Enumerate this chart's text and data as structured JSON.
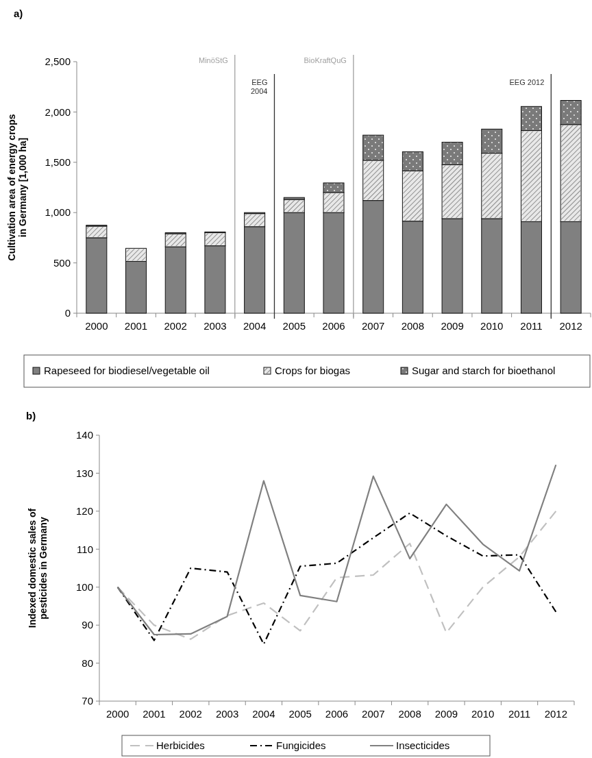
{
  "chart_data": [
    {
      "type": "bar",
      "title": "a)",
      "ylabel": "Cultivation area of energy crops\nin Germany [1,000 ha]",
      "stacked": true,
      "categories": [
        "2000",
        "2001",
        "2002",
        "2003",
        "2004",
        "2005",
        "2006",
        "2007",
        "2008",
        "2009",
        "2010",
        "2011",
        "2012"
      ],
      "series": [
        {
          "name": "Rapeseed for biodiesel/vegetable oil",
          "color": "#808080",
          "values": [
            750,
            515,
            660,
            670,
            860,
            1000,
            1000,
            1120,
            915,
            940,
            940,
            910,
            910
          ]
        },
        {
          "name": "Crops for biogas",
          "color": "#e8e8e8",
          "values": [
            115,
            130,
            130,
            130,
            130,
            130,
            200,
            400,
            500,
            535,
            650,
            905,
            965
          ]
        },
        {
          "name": "Sugar and starch for bioethanol",
          "color": "#7a7a7a",
          "values": [
            10,
            0,
            10,
            8,
            10,
            20,
            95,
            250,
            190,
            225,
            240,
            240,
            240
          ]
        }
      ],
      "ylim": [
        0,
        2500
      ],
      "yticks": [
        {
          "value": 0,
          "label": "0"
        },
        {
          "value": 500,
          "label": "500"
        },
        {
          "value": 1000,
          "label": "1,000"
        },
        {
          "value": 1500,
          "label": "1,500"
        },
        {
          "value": 2000,
          "label": "2,000"
        },
        {
          "value": 2500,
          "label": "2,500"
        }
      ],
      "annotations": [
        "MinöStG",
        "EEG\n2004",
        "BioKraftQuG",
        "EEG 2012"
      ],
      "legend": "bottom",
      "grid": false
    },
    {
      "type": "line",
      "title": "b)",
      "ylabel": "Indexed domestic sales of\npesticides in Germany",
      "categories": [
        "2000",
        "2001",
        "2002",
        "2003",
        "2004",
        "2005",
        "2006",
        "2007",
        "2008",
        "2009",
        "2010",
        "2011",
        "2012"
      ],
      "series": [
        {
          "name": "Herbicides",
          "color": "#c0c0c0",
          "line_style": "dashed",
          "values": [
            100,
            90,
            86.3,
            92.5,
            95.8,
            88.5,
            102.5,
            103.2,
            111.5,
            88,
            100,
            108,
            120
          ]
        },
        {
          "name": "Fungicides",
          "color": "#000000",
          "line_style": "dashdot",
          "values": [
            100,
            86,
            105,
            104,
            85,
            105.5,
            106.3,
            113,
            119.5,
            113.5,
            108.2,
            108.5,
            93.5
          ]
        },
        {
          "name": "Insecticides",
          "color": "#808080",
          "line_style": "solid",
          "values": [
            100,
            87.5,
            87.7,
            92.3,
            128,
            97.8,
            96.2,
            129.2,
            107.5,
            121.8,
            111.3,
            104.3,
            132.2
          ]
        }
      ],
      "ylim": [
        70,
        140
      ],
      "yticks": [
        70,
        80,
        90,
        100,
        110,
        120,
        130,
        140
      ],
      "legend": "bottom",
      "grid": false,
      "marker": "none"
    }
  ]
}
